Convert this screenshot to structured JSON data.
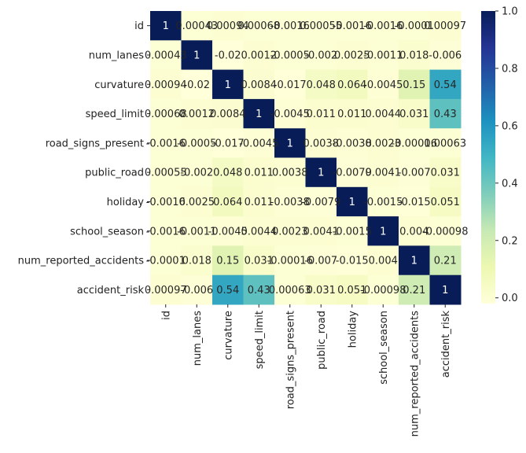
{
  "chart_data": {
    "type": "heatmap",
    "title": "",
    "xlabel": "",
    "ylabel": "",
    "row_labels": [
      "id",
      "num_lanes",
      "curvature",
      "speed_limit",
      "road_signs_present",
      "public_road",
      "holiday",
      "school_season",
      "num_reported_accidents",
      "accident_risk"
    ],
    "col_labels": [
      "id",
      "num_lanes",
      "curvature",
      "speed_limit",
      "road_signs_present",
      "public_road",
      "holiday",
      "school_season",
      "num_reported_accidents",
      "accident_risk"
    ],
    "cell_text": [
      [
        "1",
        "0.00043",
        "0.00094",
        "0.00068",
        "-0.0016",
        "0.00055",
        "-0.0016",
        "-0.0016",
        "-0.0001",
        "0.00097"
      ],
      [
        "0.00043",
        "1",
        "-0.02",
        "0.0012",
        "-0.0005",
        "-0.002",
        "0.0025",
        "-0.0011",
        "0.018",
        "-0.006"
      ],
      [
        "0.00094",
        "-0.02",
        "1",
        "0.0084",
        "-0.017",
        "0.048",
        "0.064",
        "-0.0045",
        "0.15",
        "0.54"
      ],
      [
        "0.00068",
        "0.0012",
        "0.0084",
        "1",
        "-0.0045",
        "0.011",
        "0.011",
        "0.0044",
        "0.031",
        "0.43"
      ],
      [
        "-0.0016",
        "-0.0005",
        "-0.017",
        "-0.0045",
        "1",
        "0.0038",
        "-0.0038",
        "0.0023",
        "-0.00016",
        "0.00063"
      ],
      [
        "0.00055",
        "-0.002",
        "0.048",
        "0.011",
        "0.0038",
        "1",
        "-0.0079",
        "0.0041",
        "-0.007",
        "0.031"
      ],
      [
        "-0.0016",
        "0.0025",
        "0.064",
        "0.011",
        "-0.0038",
        "-0.0079",
        "1",
        "-0.0015",
        "-0.015",
        "0.051"
      ],
      [
        "-0.0016",
        "-0.0011",
        "-0.0045",
        "0.0044",
        "0.0023",
        "0.0041",
        "-0.0015",
        "1",
        "0.004",
        "-0.00098"
      ],
      [
        "-0.0001",
        "0.018",
        "0.15",
        "0.031",
        "-0.00016",
        "-0.007",
        "-0.015",
        "0.004",
        "1",
        "0.21"
      ],
      [
        "0.00097",
        "-0.006",
        "0.54",
        "0.43",
        "0.00063",
        "0.031",
        "0.051",
        "-0.00098",
        "0.21",
        "1"
      ]
    ],
    "values": [
      [
        1,
        0.00043,
        0.00094,
        0.00068,
        -0.0016,
        0.00055,
        -0.0016,
        -0.0016,
        -0.0001,
        0.00097
      ],
      [
        0.00043,
        1,
        -0.02,
        0.0012,
        -0.0005,
        -0.002,
        0.0025,
        -0.0011,
        0.018,
        -0.006
      ],
      [
        0.00094,
        -0.02,
        1,
        0.0084,
        -0.017,
        0.048,
        0.064,
        -0.0045,
        0.15,
        0.54
      ],
      [
        0.00068,
        0.0012,
        0.0084,
        1,
        -0.0045,
        0.011,
        0.011,
        0.0044,
        0.031,
        0.43
      ],
      [
        -0.0016,
        -0.0005,
        -0.017,
        -0.0045,
        1,
        0.0038,
        -0.0038,
        0.0023,
        -0.00016,
        0.00063
      ],
      [
        0.00055,
        -0.002,
        0.048,
        0.011,
        0.0038,
        1,
        -0.0079,
        0.0041,
        -0.007,
        0.031
      ],
      [
        -0.0016,
        0.0025,
        0.064,
        0.011,
        -0.0038,
        -0.0079,
        1,
        -0.0015,
        -0.015,
        0.051
      ],
      [
        -0.0016,
        -0.0011,
        -0.0045,
        0.0044,
        0.0023,
        0.0041,
        -0.0015,
        1,
        0.004,
        -0.00098
      ],
      [
        -0.0001,
        0.018,
        0.15,
        0.031,
        -0.00016,
        -0.007,
        -0.015,
        0.004,
        1,
        0.21
      ],
      [
        0.00097,
        -0.006,
        0.54,
        0.43,
        0.00063,
        0.031,
        0.051,
        -0.00098,
        0.21,
        1
      ]
    ],
    "colormap": "YlGnBu",
    "colormap_stops": [
      "#ffffd9",
      "#edf8b1",
      "#c7e9b4",
      "#7fcdbb",
      "#41b6c4",
      "#1d91c0",
      "#225ea8",
      "#253494",
      "#081d58"
    ],
    "value_range": [
      -0.02,
      1
    ],
    "colorbar": {
      "placement": "right",
      "ticks": [
        0.0,
        0.2,
        0.4,
        0.6,
        0.8,
        1.0
      ],
      "tick_labels": [
        "0.0",
        "0.2",
        "0.4",
        "0.6",
        "0.8",
        "1.0"
      ]
    },
    "annotation_dark_color": "#262626",
    "annotation_light_color": "#ffffff",
    "grid": false
  }
}
